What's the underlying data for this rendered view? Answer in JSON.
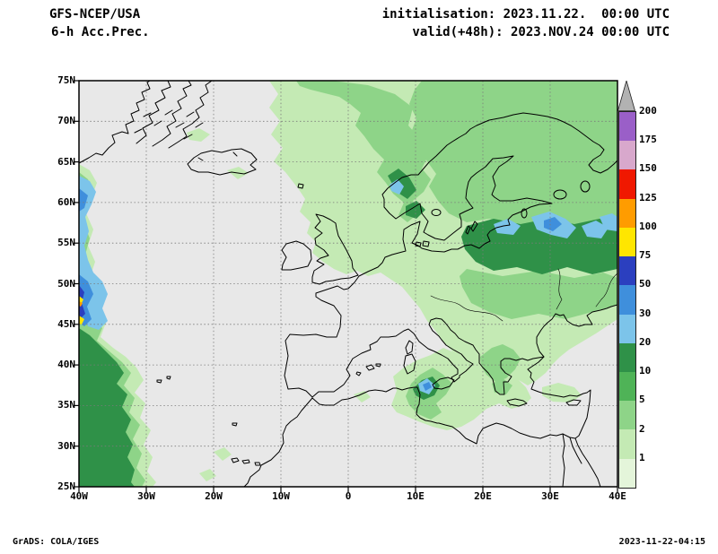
{
  "header": {
    "model": "GFS-NCEP/USA",
    "product": "6-h Acc.Prec.",
    "init_line": "initialisation: 2023.11.22.  00:00 UTC",
    "valid_line": "valid(+48h): 2023.NOV.24 00:00 UTC"
  },
  "map": {
    "lat_labels": [
      "75N",
      "70N",
      "65N",
      "60N",
      "55N",
      "50N",
      "45N",
      "40N",
      "35N",
      "30N",
      "25N"
    ],
    "lon_labels": [
      "40W",
      "30W",
      "20W",
      "10W",
      "0",
      "10E",
      "20E",
      "30E",
      "40E"
    ],
    "background_color": "#e8e8e8",
    "gridline_color": "#7a7a7a",
    "coast_color": "#000000",
    "precip_palette": {
      "2": "#c4eab4",
      "5": "#8ed488",
      "10": "#2f9148",
      "20": "#7cc4ea",
      "30": "#3f8fdc",
      "50": "#2b3fbf",
      "75": "#ffe600",
      "100": "#ff9c00"
    }
  },
  "colorbar": {
    "values": [
      200,
      175,
      150,
      125,
      100,
      75,
      50,
      30,
      20,
      10,
      5,
      2,
      1
    ],
    "band_colors_top_to_bottom": [
      "#9a5fc8",
      "#d8a8cc",
      "#f01800",
      "#ff9c00",
      "#ffe600",
      "#2b3fbf",
      "#3f8fdc",
      "#7cc4ea",
      "#2f9148",
      "#4fb357",
      "#8ed488",
      "#c4eab4",
      "#e4f5da"
    ],
    "arrow_color": "#b2b2b2"
  },
  "footer": {
    "left": "GrADS: COLA/IGES",
    "right": "2023-11-22-04:15"
  }
}
